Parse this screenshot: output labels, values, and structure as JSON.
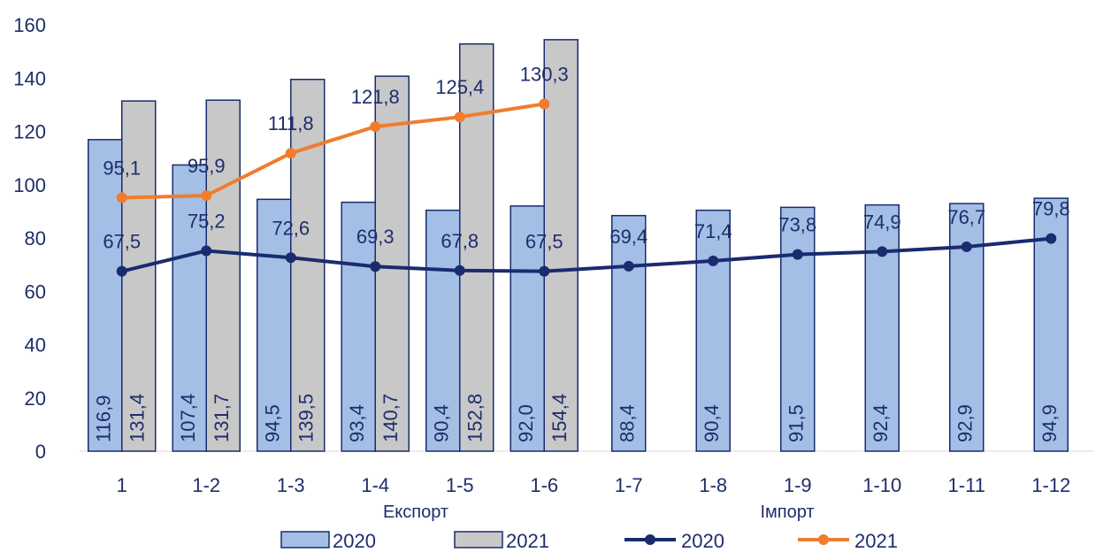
{
  "chart_data": {
    "type": "bar",
    "title": "",
    "xlabel": "",
    "ylabel": "",
    "categories": [
      "1",
      "1-2",
      "1-3",
      "1-4",
      "1-5",
      "1-6",
      "1-7",
      "1-8",
      "1-9",
      "1-10",
      "1-11",
      "1-12"
    ],
    "ylim": [
      0,
      160
    ],
    "yticks": [
      0,
      20,
      40,
      60,
      80,
      100,
      120,
      140,
      160
    ],
    "group_labels": [
      "Експорт",
      "Імпорт"
    ],
    "bar_series": [
      {
        "name": "2020",
        "color": "#a4bfe6",
        "values": [
          116.9,
          107.4,
          94.5,
          93.4,
          90.4,
          92.0,
          88.4,
          90.4,
          91.5,
          92.4,
          92.9,
          94.9
        ],
        "labels": [
          "116,9",
          "107,4",
          "94,5",
          "93,4",
          "90,4",
          "92,0",
          "88,4",
          "90,4",
          "91,5",
          "92,4",
          "92,9",
          "94,9"
        ]
      },
      {
        "name": "2021",
        "color": "#c8c8c8",
        "values": [
          131.4,
          131.7,
          139.5,
          140.7,
          152.8,
          154.4,
          null,
          null,
          null,
          null,
          null,
          null
        ],
        "labels": [
          "131,4",
          "131,7",
          "139,5",
          "140,7",
          "152,8",
          "154,4",
          "",
          "",
          "",
          "",
          "",
          ""
        ]
      }
    ],
    "line_series": [
      {
        "name": "2020",
        "color": "#1a2b6e",
        "values": [
          67.5,
          75.2,
          72.6,
          69.3,
          67.8,
          67.5,
          69.4,
          71.4,
          73.8,
          74.9,
          76.7,
          79.8
        ],
        "labels": [
          "67,5",
          "75,2",
          "72,6",
          "69,3",
          "67,8",
          "67,5",
          "69,4",
          "71,4",
          "73,8",
          "74,9",
          "76,7",
          "79,8"
        ]
      },
      {
        "name": "2021",
        "color": "#f07c2e",
        "values": [
          95.1,
          95.9,
          111.8,
          121.8,
          125.4,
          130.3,
          null,
          null,
          null,
          null,
          null,
          null
        ],
        "labels": [
          "95,1",
          "95,9",
          "111,8",
          "121,8",
          "125,4",
          "130,3",
          "",
          "",
          "",
          "",
          "",
          ""
        ]
      }
    ],
    "legend_position": "bottom",
    "grid": false
  }
}
